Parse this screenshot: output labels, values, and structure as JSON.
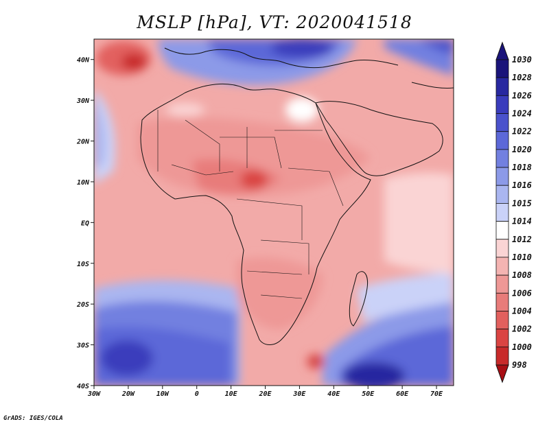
{
  "title": "MSLP [hPa], VT: 2020041518",
  "credit": "GrADS: IGES/COLA",
  "map": {
    "lon_ticks": [
      "30W",
      "20W",
      "10W",
      "0",
      "10E",
      "20E",
      "30E",
      "40E",
      "50E",
      "60E",
      "70E"
    ],
    "lat_ticks": [
      "40N",
      "30N",
      "20N",
      "10N",
      "EQ",
      "10S",
      "20S",
      "30S",
      "40S"
    ],
    "lon_range": [
      -30,
      75
    ],
    "lat_range": [
      -40,
      45
    ]
  },
  "colorbar": {
    "levels": [
      "1030",
      "1028",
      "1026",
      "1024",
      "1022",
      "1020",
      "1018",
      "1016",
      "1015",
      "1014",
      "1012",
      "1010",
      "1008",
      "1006",
      "1004",
      "1002",
      "1000",
      "998"
    ],
    "colors": [
      "#1a147a",
      "#2828a0",
      "#3a3cbc",
      "#4a52cc",
      "#5c68d8",
      "#7280e0",
      "#8c9ae8",
      "#aab6f0",
      "#cad2f8",
      "#ffffff",
      "#fad4d4",
      "#f4b4b2",
      "#ee9896",
      "#e87c7a",
      "#e2605e",
      "#da4442",
      "#c82a2a",
      "#a80e14"
    ]
  }
}
